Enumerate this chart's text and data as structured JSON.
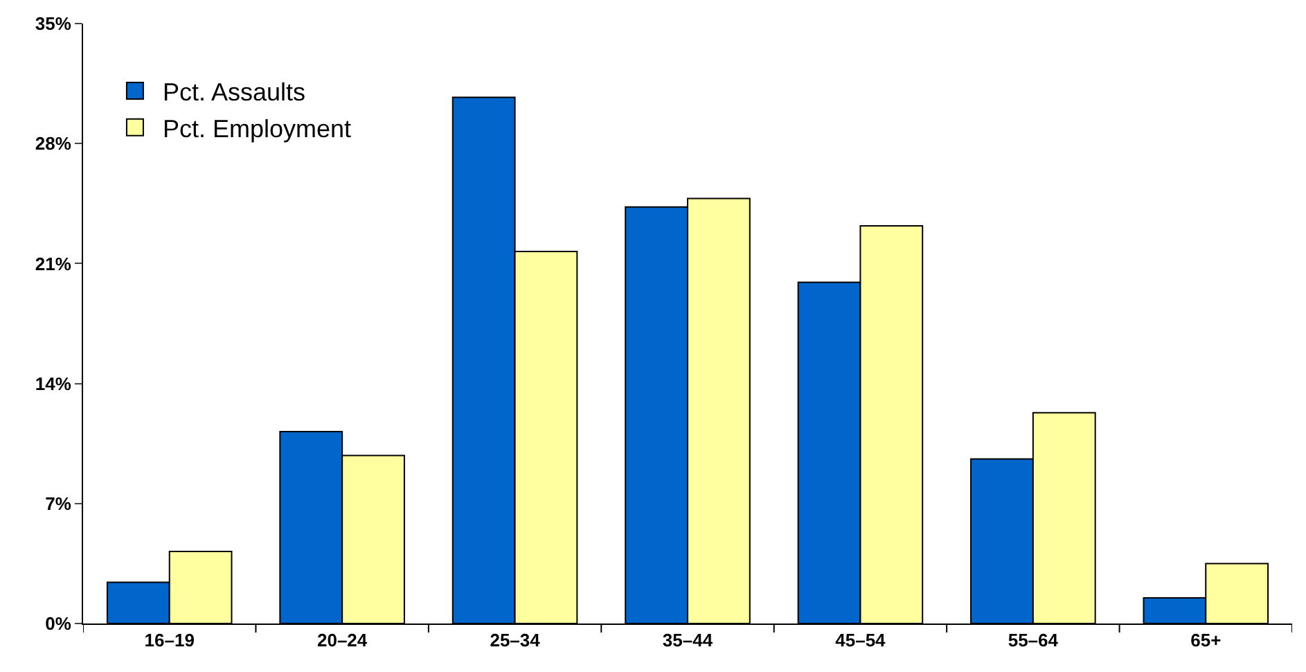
{
  "chart_data": {
    "type": "bar",
    "categories": [
      "16–19",
      "20–24",
      "25–34",
      "35–44",
      "45–54",
      "55–64",
      "65+"
    ],
    "series": [
      {
        "name": "Pct. Assaults",
        "color": "#0066cc",
        "values": [
          2.4,
          11.2,
          30.7,
          24.3,
          19.9,
          9.6,
          1.5
        ]
      },
      {
        "name": "Pct. Employment",
        "color": "#ffffa0",
        "values": [
          4.2,
          9.8,
          21.7,
          24.8,
          23.2,
          12.3,
          3.5
        ]
      }
    ],
    "ylim": [
      0,
      35
    ],
    "yticks": [
      {
        "value": 0,
        "label": "0%"
      },
      {
        "value": 7,
        "label": "7%"
      },
      {
        "value": 14,
        "label": "14%"
      },
      {
        "value": 21,
        "label": "21%"
      },
      {
        "value": 28,
        "label": "28%"
      },
      {
        "value": 35,
        "label": "35%"
      }
    ],
    "grid": false,
    "legend": "top left"
  }
}
